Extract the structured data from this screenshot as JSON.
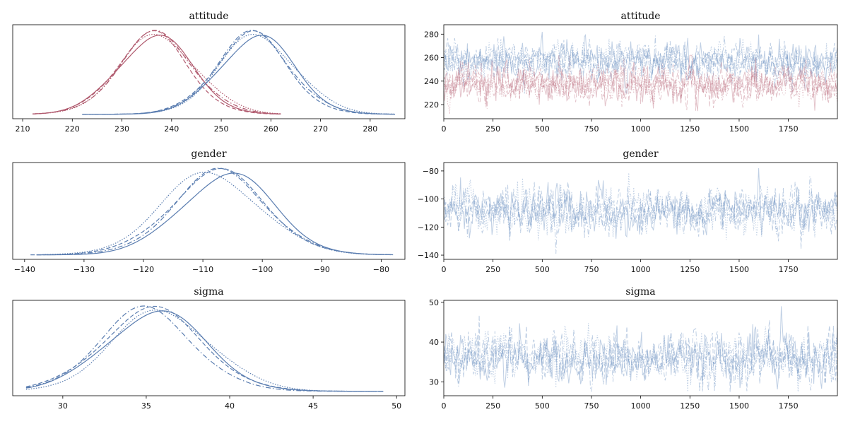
{
  "colors": {
    "blue": "#5a7db0",
    "red": "#b05a6e",
    "blue_trace": "#7095c4",
    "red_trace": "#c07a8a"
  },
  "chart_data": [
    {
      "type": "line",
      "kind": "kde",
      "title": "attitude",
      "xlim": [
        208,
        287
      ],
      "xticks": [
        210,
        220,
        230,
        240,
        250,
        260,
        270,
        280
      ],
      "yticks_visible": false,
      "series": [
        {
          "color": "red",
          "chains": [
            {
              "style": "solid",
              "peak": 236.5,
              "width": 7.5,
              "xmin": 212,
              "xmax": 262
            },
            {
              "style": "dashed",
              "peak": 236.0,
              "width": 7.3,
              "xmin": 212,
              "xmax": 262
            },
            {
              "style": "dashdot",
              "peak": 237.0,
              "width": 7.6,
              "xmin": 212,
              "xmax": 262
            },
            {
              "style": "dotted",
              "peak": 237.5,
              "width": 7.8,
              "xmin": 212,
              "xmax": 262
            }
          ]
        },
        {
          "color": "blue",
          "chains": [
            {
              "style": "solid",
              "peak": 257.0,
              "width": 7.5,
              "xmin": 222,
              "xmax": 285
            },
            {
              "style": "dashed",
              "peak": 256.0,
              "width": 7.4,
              "xmin": 222,
              "xmax": 285
            },
            {
              "style": "dashdot",
              "peak": 256.5,
              "width": 7.6,
              "xmin": 222,
              "xmax": 285
            },
            {
              "style": "dotted",
              "peak": 257.5,
              "width": 7.8,
              "xmin": 222,
              "xmax": 285
            }
          ]
        }
      ]
    },
    {
      "type": "line",
      "kind": "trace",
      "title": "attitude",
      "xlim": [
        0,
        1999
      ],
      "xticks": [
        0,
        250,
        500,
        750,
        1000,
        1250,
        1500,
        1750
      ],
      "ylim": [
        208,
        288
      ],
      "yticks": [
        220,
        240,
        260,
        280
      ],
      "series": [
        {
          "color": "blue",
          "mean": 257,
          "sd": 7.5,
          "min": 226,
          "max": 285
        },
        {
          "color": "red",
          "mean": 237,
          "sd": 7.5,
          "min": 212,
          "max": 262
        }
      ]
    },
    {
      "type": "line",
      "kind": "kde",
      "title": "gender",
      "xlim": [
        -142,
        -76
      ],
      "xticks": [
        -140,
        -130,
        -120,
        -110,
        -100,
        -90,
        -80
      ],
      "yticks_visible": false,
      "series": [
        {
          "color": "blue",
          "chains": [
            {
              "style": "solid",
              "peak": -106.0,
              "width": 7.8,
              "xmin": -138,
              "xmax": -78
            },
            {
              "style": "dashed",
              "peak": -107.5,
              "width": 8.2,
              "xmin": -139,
              "xmax": -79
            },
            {
              "style": "dashdot",
              "peak": -107.0,
              "width": 8.0,
              "xmin": -138,
              "xmax": -78
            },
            {
              "style": "dotted",
              "peak": -108.5,
              "width": 8.4,
              "xmin": -137,
              "xmax": -79
            }
          ]
        }
      ]
    },
    {
      "type": "line",
      "kind": "trace",
      "title": "gender",
      "xlim": [
        0,
        1999
      ],
      "xticks": [
        0,
        250,
        500,
        750,
        1000,
        1250,
        1500,
        1750
      ],
      "ylim": [
        -143,
        -74
      ],
      "yticks": [
        -140,
        -120,
        -100,
        -80
      ],
      "series": [
        {
          "color": "blue",
          "mean": -108,
          "sd": 8,
          "min": -139,
          "max": -78
        }
      ]
    },
    {
      "type": "line",
      "kind": "kde",
      "title": "sigma",
      "xlim": [
        27,
        50.5
      ],
      "xticks": [
        30,
        35,
        40,
        45,
        50
      ],
      "yticks_visible": false,
      "series": [
        {
          "color": "blue",
          "chains": [
            {
              "style": "solid",
              "peak": 35.5,
              "width": 3.0,
              "xmin": 27.8,
              "xmax": 49.2
            },
            {
              "style": "dashed",
              "peak": 35.3,
              "width": 3.1,
              "xmin": 27.8,
              "xmax": 49.2
            },
            {
              "style": "dashdot",
              "peak": 35.0,
              "width": 2.9,
              "xmin": 27.8,
              "xmax": 49.2
            },
            {
              "style": "dotted",
              "peak": 36.0,
              "width": 3.0,
              "xmin": 27.8,
              "xmax": 49.2
            }
          ]
        }
      ]
    },
    {
      "type": "line",
      "kind": "trace",
      "title": "sigma",
      "xlim": [
        0,
        1999
      ],
      "xticks": [
        0,
        250,
        500,
        750,
        1000,
        1250,
        1500,
        1750
      ],
      "ylim": [
        26.5,
        50.5
      ],
      "yticks": [
        30,
        40,
        50
      ],
      "series": [
        {
          "color": "blue",
          "mean": 36,
          "sd": 3.1,
          "min": 27.5,
          "max": 49
        }
      ]
    }
  ]
}
